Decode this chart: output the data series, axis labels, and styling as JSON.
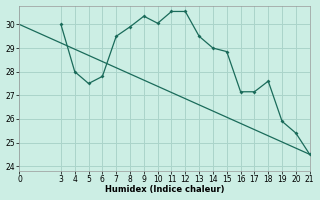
{
  "xlabel": "Humidex (Indice chaleur)",
  "bg_color": "#cceee4",
  "grid_color": "#aad4ca",
  "line_color": "#1a6b5a",
  "xlim": [
    0,
    21
  ],
  "ylim": [
    23.8,
    30.8
  ],
  "xticks": [
    0,
    3,
    4,
    5,
    6,
    7,
    8,
    9,
    10,
    11,
    12,
    13,
    14,
    15,
    16,
    17,
    18,
    19,
    20,
    21
  ],
  "yticks": [
    24,
    25,
    26,
    27,
    28,
    29,
    30
  ],
  "series1_x": [
    3,
    4,
    5,
    6,
    7,
    8,
    9,
    10,
    11,
    12,
    13,
    14,
    15,
    16,
    17,
    18,
    19,
    20,
    21
  ],
  "series1_y": [
    30.0,
    28.0,
    27.5,
    27.8,
    29.5,
    29.9,
    30.35,
    30.05,
    30.55,
    30.55,
    29.5,
    29.0,
    28.85,
    27.15,
    27.15,
    27.6,
    25.9,
    25.4,
    24.5
  ],
  "series2_x": [
    0,
    21
  ],
  "series2_y": [
    30.0,
    24.5
  ],
  "xlabel_fontsize": 6,
  "tick_fontsize": 5.5
}
